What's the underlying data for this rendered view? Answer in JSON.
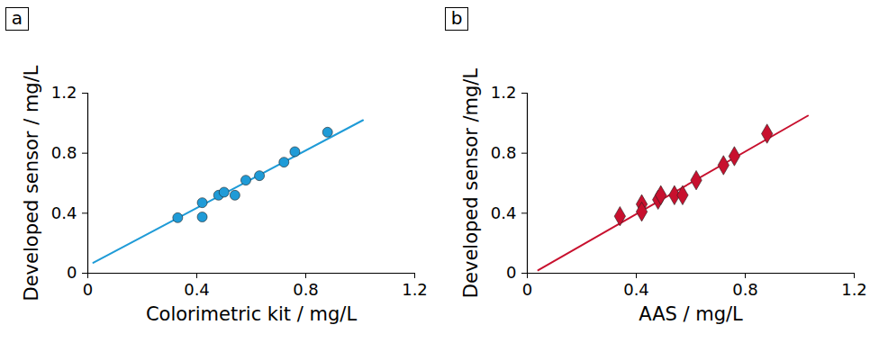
{
  "chart_data": [
    {
      "type": "scatter",
      "panel_label": "a",
      "xlabel": "Colorimetric kit / mg/L",
      "ylabel": "Developed sensor / mg/L",
      "x": [
        0.33,
        0.42,
        0.42,
        0.48,
        0.5,
        0.54,
        0.58,
        0.63,
        0.72,
        0.76,
        0.88
      ],
      "y": [
        0.37,
        0.47,
        0.375,
        0.52,
        0.54,
        0.52,
        0.62,
        0.65,
        0.74,
        0.81,
        0.94
      ],
      "fit_line": {
        "x": [
          0.02,
          1.01
        ],
        "y": [
          0.07,
          1.02
        ]
      },
      "color": "#1f9bd7",
      "marker": "circle",
      "line_style": "solid",
      "xlim": [
        0,
        1.2
      ],
      "ylim": [
        0,
        1.2
      ],
      "xticks": [
        0,
        0.4,
        0.8,
        1.2
      ],
      "yticks": [
        0,
        0.4,
        0.8,
        1.2
      ],
      "grid": false
    },
    {
      "type": "scatter",
      "panel_label": "b",
      "xlabel": "AAS / mg/L",
      "ylabel": "Developed sensor /mg/L",
      "x": [
        0.34,
        0.42,
        0.42,
        0.48,
        0.49,
        0.54,
        0.57,
        0.62,
        0.72,
        0.76,
        0.88
      ],
      "y": [
        0.38,
        0.46,
        0.41,
        0.49,
        0.52,
        0.52,
        0.52,
        0.62,
        0.72,
        0.78,
        0.93
      ],
      "fit_line": {
        "x": [
          0.04,
          1.03
        ],
        "y": [
          0.02,
          1.05
        ]
      },
      "color": "#c8102e",
      "marker": "diamond",
      "line_style": "solid",
      "xlim": [
        0,
        1.2
      ],
      "ylim": [
        0,
        1.2
      ],
      "xticks": [
        0,
        0.4,
        0.8,
        1.2
      ],
      "yticks": [
        0,
        0.4,
        0.8,
        1.2
      ],
      "grid": false
    }
  ]
}
